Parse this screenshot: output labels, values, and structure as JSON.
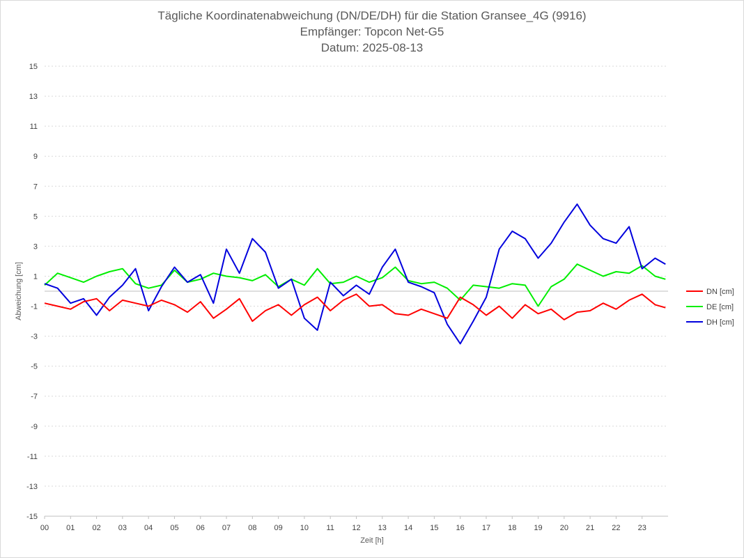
{
  "chart_data": {
    "type": "line",
    "title_lines": [
      "Tägliche Koordinatenabweichung (DN/DE/DH) für die Station Gransee_4G (9916)",
      "Empfänger: Topcon Net-G5",
      "Datum: 2025-08-13"
    ],
    "xlabel": "Zeit [h]",
    "ylabel": "Abweichung [cm]",
    "xlim": [
      0,
      24
    ],
    "ylim": [
      -15,
      15
    ],
    "x_ticks": [
      "00",
      "01",
      "02",
      "03",
      "04",
      "05",
      "06",
      "07",
      "08",
      "09",
      "10",
      "11",
      "12",
      "13",
      "14",
      "15",
      "16",
      "17",
      "18",
      "19",
      "20",
      "21",
      "22",
      "23"
    ],
    "y_ticks": [
      15,
      13,
      11,
      9,
      7,
      5,
      3,
      1,
      -1,
      -3,
      -5,
      -7,
      -9,
      -11,
      -13,
      -15
    ],
    "grid": true,
    "legend_position": "right",
    "series": [
      {
        "name": "DN [cm]",
        "color": "#ff0000",
        "x": [
          0,
          0.5,
          1,
          1.5,
          2,
          2.5,
          3,
          3.5,
          4,
          4.5,
          5,
          5.5,
          6,
          6.5,
          7,
          7.5,
          8,
          8.5,
          9,
          9.5,
          10,
          10.5,
          11,
          11.5,
          12,
          12.5,
          13,
          13.5,
          14,
          14.5,
          15,
          15.5,
          16,
          16.5,
          17,
          17.5,
          18,
          18.5,
          19,
          19.5,
          20,
          20.5,
          21,
          21.5,
          22,
          22.5,
          23,
          23.5,
          23.9
        ],
        "values": [
          -0.8,
          -1.0,
          -1.2,
          -0.7,
          -0.5,
          -1.3,
          -0.6,
          -0.8,
          -1.0,
          -0.6,
          -0.9,
          -1.4,
          -0.7,
          -1.8,
          -1.2,
          -0.5,
          -2.0,
          -1.3,
          -0.9,
          -1.6,
          -0.9,
          -0.4,
          -1.3,
          -0.6,
          -0.2,
          -1.0,
          -0.9,
          -1.5,
          -1.6,
          -1.2,
          -1.5,
          -1.8,
          -0.4,
          -0.9,
          -1.6,
          -1.0,
          -1.8,
          -0.9,
          -1.5,
          -1.2,
          -1.9,
          -1.4,
          -1.3,
          -0.8,
          -1.2,
          -0.6,
          -0.2,
          -0.9,
          -1.1
        ]
      },
      {
        "name": "DE [cm]",
        "color": "#00ee00",
        "x": [
          0,
          0.5,
          1,
          1.5,
          2,
          2.5,
          3,
          3.5,
          4,
          4.5,
          5,
          5.5,
          6,
          6.5,
          7,
          7.5,
          8,
          8.5,
          9,
          9.5,
          10,
          10.5,
          11,
          11.5,
          12,
          12.5,
          13,
          13.5,
          14,
          14.5,
          15,
          15.5,
          16,
          16.5,
          17,
          17.5,
          18,
          18.5,
          19,
          19.5,
          20,
          20.5,
          21,
          21.5,
          22,
          22.5,
          23,
          23.5,
          23.9
        ],
        "values": [
          0.4,
          1.2,
          0.9,
          0.6,
          1.0,
          1.3,
          1.5,
          0.5,
          0.2,
          0.4,
          1.4,
          0.6,
          0.8,
          1.2,
          1.0,
          0.9,
          0.7,
          1.1,
          0.3,
          0.8,
          0.4,
          1.5,
          0.5,
          0.6,
          1.0,
          0.6,
          0.9,
          1.6,
          0.7,
          0.5,
          0.6,
          0.2,
          -0.6,
          0.4,
          0.3,
          0.2,
          0.5,
          0.4,
          -1.0,
          0.3,
          0.8,
          1.8,
          1.4,
          1.0,
          1.3,
          1.2,
          1.7,
          1.0,
          0.8
        ]
      },
      {
        "name": "DH [cm]",
        "color": "#0000dd",
        "x": [
          0,
          0.5,
          1,
          1.5,
          2,
          2.5,
          3,
          3.5,
          4,
          4.5,
          5,
          5.5,
          6,
          6.5,
          7,
          7.5,
          8,
          8.5,
          9,
          9.5,
          10,
          10.5,
          11,
          11.5,
          12,
          12.5,
          13,
          13.5,
          14,
          14.5,
          15,
          15.5,
          16,
          16.5,
          17,
          17.5,
          18,
          18.5,
          19,
          19.5,
          20,
          20.5,
          21,
          21.5,
          22,
          22.5,
          23,
          23.5,
          23.9
        ],
        "values": [
          0.5,
          0.2,
          -0.8,
          -0.5,
          -1.6,
          -0.4,
          0.4,
          1.5,
          -1.3,
          0.3,
          1.6,
          0.6,
          1.1,
          -0.8,
          2.8,
          1.2,
          3.5,
          2.6,
          0.2,
          0.8,
          -1.8,
          -2.6,
          0.6,
          -0.3,
          0.4,
          -0.2,
          1.6,
          2.8,
          0.6,
          0.3,
          -0.1,
          -2.2,
          -3.5,
          -2.0,
          -0.4,
          2.8,
          4.0,
          3.5,
          2.2,
          3.2,
          4.6,
          5.8,
          4.4,
          3.5,
          3.2,
          4.3,
          1.5,
          2.2,
          1.8
        ]
      }
    ]
  }
}
